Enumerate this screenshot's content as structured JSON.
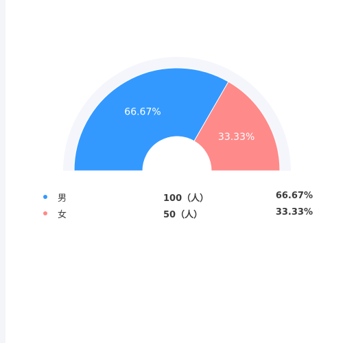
{
  "chart_data": {
    "type": "pie",
    "subtype": "half-donut",
    "categories": [
      "男",
      "女"
    ],
    "values": [
      100,
      50
    ],
    "percent_labels": [
      "66.67%",
      "33.33%"
    ],
    "count_labels": [
      "100（人）",
      "50（人）"
    ],
    "colors": [
      "#3399ff",
      "#ff8a8a"
    ],
    "track_color": "#f4f6fc",
    "label_color": "#ffffff",
    "legend_placement": "bottom"
  }
}
